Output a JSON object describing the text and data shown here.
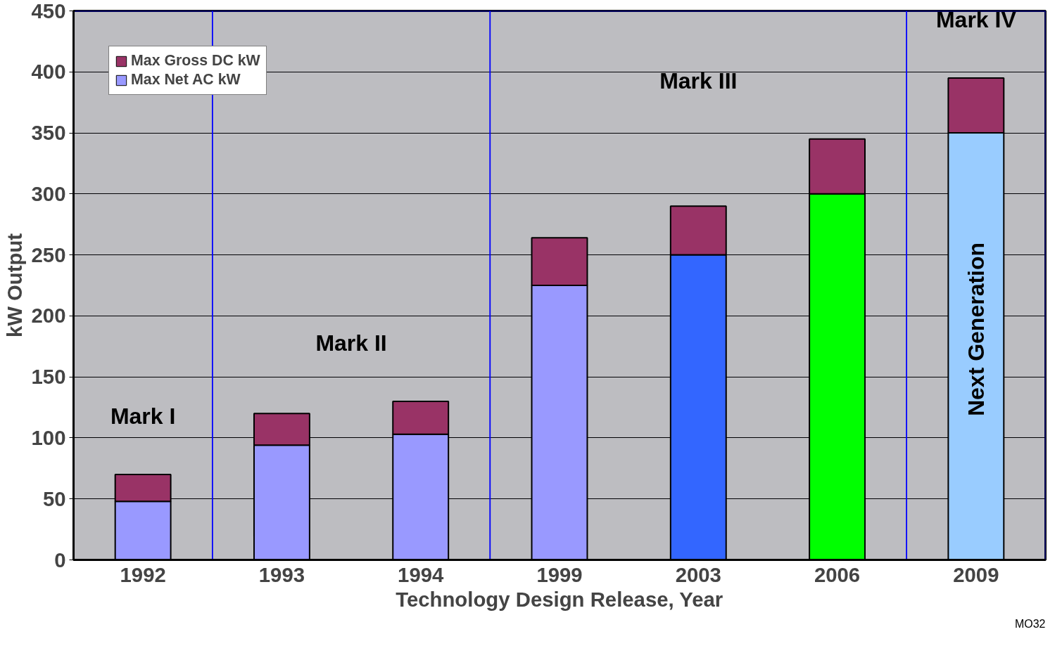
{
  "chart_data": {
    "type": "bar",
    "stacked": true,
    "xlabel": "Technology Design Release, Year",
    "ylabel": "kW Output",
    "categories": [
      "1992",
      "1993",
      "1994",
      "1999",
      "2003",
      "2006",
      "2009"
    ],
    "series": [
      {
        "name": "Max Net AC kW",
        "color": "#9999ff",
        "colors": [
          "#9999ff",
          "#9999ff",
          "#9999ff",
          "#9999ff",
          "#3366ff",
          "#00ff00",
          "#99ccff"
        ],
        "values": [
          48,
          94,
          103,
          225,
          250,
          300,
          350
        ]
      },
      {
        "name": "Max Gross DC kW",
        "color": "#993366",
        "values": [
          22,
          26,
          27,
          39,
          40,
          45,
          45
        ]
      }
    ],
    "ylim": [
      0,
      450
    ],
    "yticks": [
      0,
      50,
      100,
      150,
      200,
      250,
      300,
      350,
      400,
      450
    ],
    "grid": "y",
    "legend": "top left",
    "bands": [
      {
        "axis": "x",
        "from": "1992",
        "to": "1992",
        "label": "Mark I",
        "color": "#0000ff"
      },
      {
        "axis": "x",
        "from": "1993",
        "to": "1994",
        "label": "Mark II",
        "color": "#0000ff"
      },
      {
        "axis": "x",
        "from": "1999",
        "to": "2006",
        "label": "Mark III",
        "color": "#0000ff"
      },
      {
        "axis": "x",
        "from": "2009",
        "to": "2009",
        "label": "Mark IV",
        "color": "#0000ff"
      }
    ],
    "annotations": [
      "Next Generation",
      "MO32"
    ]
  }
}
